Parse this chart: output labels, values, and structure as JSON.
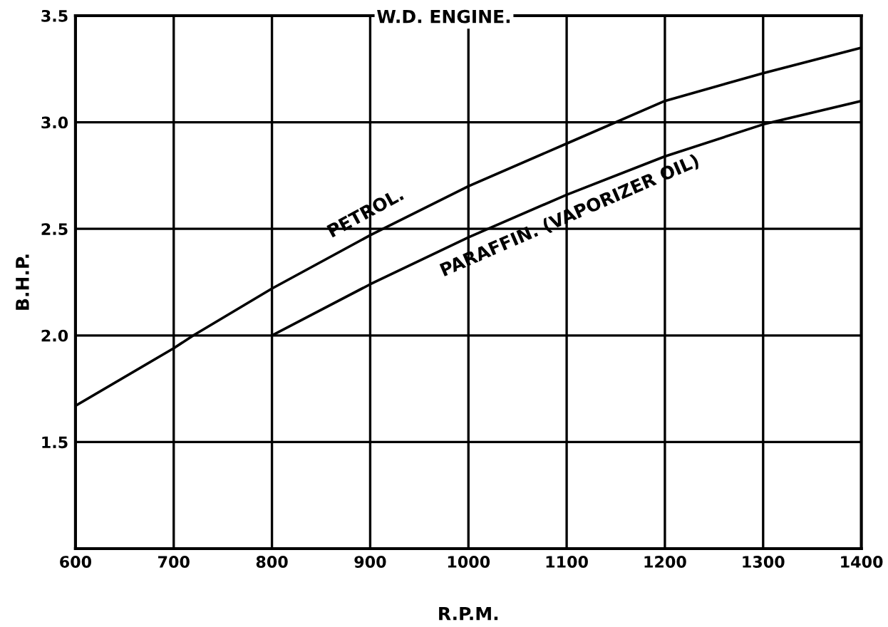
{
  "chart_data": {
    "type": "line",
    "title": "W.D. ENGINE.",
    "xlabel": "R.P.M.",
    "ylabel": "B.H.P.",
    "series": [
      {
        "name": "PETROL.",
        "color": "#000000",
        "x": [
          600,
          700,
          720,
          800,
          900,
          1000,
          1100,
          1200,
          1300,
          1400
        ],
        "values": [
          1.67,
          1.94,
          2.0,
          2.22,
          2.47,
          2.7,
          2.9,
          3.1,
          3.23,
          3.35
        ]
      },
      {
        "name": "PARAFFIN. (VAPORIZER OIL)",
        "color": "#000000",
        "x": [
          800,
          900,
          1000,
          1100,
          1200,
          1300,
          1400
        ],
        "values": [
          2.0,
          2.24,
          2.46,
          2.66,
          2.84,
          2.99,
          3.1
        ]
      }
    ],
    "xlim": [
      600,
      1400
    ],
    "xticks": [
      600,
      700,
      800,
      900,
      1000,
      1100,
      1200,
      1300,
      1400
    ],
    "ylim": [
      1.0,
      3.5
    ],
    "yticks": [
      1.5,
      {
        "value": 2,
        "label": "2.0"
      },
      2.5,
      {
        "value": 3,
        "label": "3.0"
      },
      3.5
    ],
    "grid": true,
    "legend": false,
    "marker": "none",
    "line_style": "solid"
  }
}
